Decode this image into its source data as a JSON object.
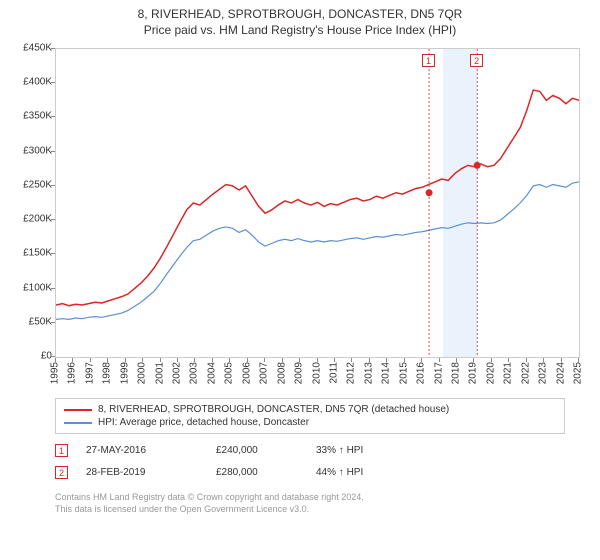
{
  "title_line1": "8, RIVERHEAD, SPROTBROUGH, DONCASTER, DN5 7QR",
  "title_line2": "Price paid vs. HM Land Registry's House Price Index (HPI)",
  "chart": {
    "type": "line",
    "plot_bg": "#ffffff",
    "border_color": "#cccccc",
    "grid": false,
    "x": {
      "start_year": 1995,
      "end_year": 2025,
      "ticks": [
        1995,
        1996,
        1997,
        1998,
        1999,
        2000,
        2001,
        2002,
        2003,
        2004,
        2005,
        2006,
        2007,
        2008,
        2009,
        2010,
        2011,
        2012,
        2013,
        2014,
        2015,
        2016,
        2017,
        2018,
        2019,
        2020,
        2021,
        2022,
        2023,
        2024,
        2025
      ],
      "tick_fontsize": 10,
      "rotation": -90
    },
    "y": {
      "min": 0,
      "max": 450000,
      "ticks": [
        0,
        50000,
        100000,
        150000,
        200000,
        250000,
        300000,
        350000,
        400000,
        450000
      ],
      "tick_labels": [
        "£0",
        "£50K",
        "£100K",
        "£150K",
        "£200K",
        "£250K",
        "£300K",
        "£350K",
        "£400K",
        "£450K"
      ],
      "tick_fontsize": 10
    },
    "series": [
      {
        "name": "property",
        "label": "8, RIVERHEAD, SPROTBROUGH, DONCASTER, DN5 7QR (detached house)",
        "color": "#d92626",
        "line_width": 1.5,
        "values": [
          76000,
          78000,
          75000,
          77000,
          76000,
          78000,
          80000,
          79000,
          82000,
          85000,
          88000,
          92000,
          100000,
          108000,
          118000,
          130000,
          145000,
          162000,
          180000,
          198000,
          215000,
          225000,
          222000,
          230000,
          238000,
          245000,
          252000,
          250000,
          244000,
          250000,
          235000,
          220000,
          210000,
          215000,
          222000,
          228000,
          225000,
          230000,
          225000,
          222000,
          226000,
          220000,
          224000,
          222000,
          226000,
          230000,
          232000,
          228000,
          230000,
          235000,
          232000,
          236000,
          240000,
          238000,
          242000,
          246000,
          248000,
          252000,
          256000,
          260000,
          258000,
          268000,
          275000,
          280000,
          278000,
          282000,
          278000,
          280000,
          290000,
          305000,
          320000,
          335000,
          360000,
          390000,
          388000,
          375000,
          382000,
          378000,
          370000,
          378000,
          375000
        ]
      },
      {
        "name": "hpi",
        "label": "HPI: Average price, detached house, Doncaster",
        "color": "#5b8fd6",
        "line_width": 1.2,
        "values": [
          55000,
          56000,
          55000,
          57000,
          56000,
          58000,
          59000,
          58000,
          60000,
          62000,
          64000,
          68000,
          74000,
          80000,
          88000,
          96000,
          108000,
          122000,
          135000,
          148000,
          160000,
          170000,
          172000,
          178000,
          184000,
          188000,
          190000,
          188000,
          182000,
          186000,
          178000,
          168000,
          162000,
          166000,
          170000,
          172000,
          170000,
          173000,
          170000,
          168000,
          170000,
          168000,
          170000,
          169000,
          171000,
          173000,
          174000,
          172000,
          174000,
          176000,
          175000,
          177000,
          179000,
          178000,
          180000,
          182000,
          183000,
          185000,
          187000,
          189000,
          188000,
          191000,
          194000,
          196000,
          195000,
          196000,
          195000,
          196000,
          200000,
          208000,
          216000,
          225000,
          236000,
          250000,
          252000,
          248000,
          252000,
          250000,
          248000,
          254000,
          256000
        ]
      }
    ],
    "x_sample_count": 81,
    "highlight_band": {
      "from_year": 2017.2,
      "to_year": 2019.2,
      "color": "#eaf2fb"
    },
    "transactions": [
      {
        "id": "1",
        "year": 2016.4,
        "value": 240000,
        "date": "27-MAY-2016",
        "price": "£240,000",
        "pct": "33% ↑ HPI",
        "color": "#d92626"
      },
      {
        "id": "2",
        "year": 2019.16,
        "value": 280000,
        "date": "28-FEB-2019",
        "price": "£280,000",
        "pct": "44% ↑ HPI",
        "color": "#d92626"
      }
    ]
  },
  "legend_border": "#cccccc",
  "footnote_line1": "Contains HM Land Registry data © Crown copyright and database right 2024.",
  "footnote_line2": "This data is licensed under the Open Government Licence v3.0.",
  "footnote_color": "#999999"
}
